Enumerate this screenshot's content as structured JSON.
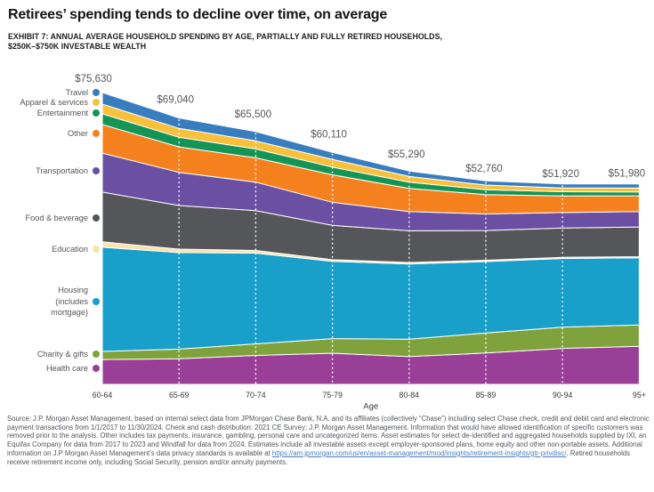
{
  "header": {
    "title": "Retirees’ spending tends to decline over time, on average",
    "subtitle_line1": "EXHIBIT 7: ANNUAL AVERAGE HOUSEHOLD SPENDING BY AGE, PARTIALLY AND FULLY RETIRED HOUSEHOLDS,",
    "subtitle_line2": "$250K–$750K INVESTABLE WEALTH"
  },
  "chart_data": {
    "type": "area",
    "stacked": true,
    "title": "Annual average household spending by age",
    "xlabel": "Age",
    "ylabel": "",
    "grid": "white dashed vertical lines at interior age ticks",
    "legend_position": "left",
    "categories": [
      "60-64",
      "65-69",
      "70-74",
      "75-79",
      "80-84",
      "85-89",
      "90-94",
      "95+"
    ],
    "totals": [
      75630,
      69040,
      65500,
      60110,
      55290,
      52760,
      51920,
      51980
    ],
    "total_labels": [
      "$75,630",
      "$69,040",
      "$65,500",
      "$60,110",
      "$55,290",
      "$52,760",
      "$51,920",
      "$51,980"
    ],
    "series_note": "series listed top-to-bottom as stacked; values are estimates read from the chart that sum to the labeled totals",
    "series": [
      {
        "name": "Travel",
        "color": "#377DC0",
        "values": [
          3000,
          2700,
          2400,
          1800,
          1400,
          1100,
          1000,
          1100
        ]
      },
      {
        "name": "Apparel & services",
        "color": "#F9C03C",
        "values": [
          2500,
          2300,
          2100,
          2000,
          1500,
          1200,
          1000,
          1000
        ]
      },
      {
        "name": "Entertainment",
        "color": "#149455",
        "values": [
          2800,
          2500,
          2300,
          2000,
          1600,
          1300,
          1100,
          1000
        ]
      },
      {
        "name": "Other",
        "color": "#F5801E",
        "values": [
          7400,
          6600,
          6300,
          7100,
          6000,
          5000,
          4300,
          4100
        ]
      },
      {
        "name": "Transportation",
        "color": "#6A4FA3",
        "values": [
          10100,
          8600,
          7400,
          6000,
          5000,
          4300,
          4000,
          4000
        ]
      },
      {
        "name": "Food & beverage",
        "color": "#54565A",
        "values": [
          12900,
          11300,
          10300,
          8900,
          8200,
          7700,
          7600,
          7700
        ]
      },
      {
        "name": "Education",
        "color": "#FAE3AC",
        "values": [
          1400,
          900,
          700,
          450,
          400,
          350,
          300,
          300
        ]
      },
      {
        "name": "Housing (includes mortgage)",
        "color": "#189FCA",
        "legend_lines": [
          "Housing",
          "(includes",
          "mortgage)"
        ],
        "values": [
          27000,
          25000,
          23500,
          20000,
          19500,
          18500,
          17800,
          17400
        ]
      },
      {
        "name": "Charity & gifts",
        "color": "#7FA23C",
        "values": [
          2100,
          2500,
          3000,
          3800,
          4500,
          5200,
          5500,
          5500
        ]
      },
      {
        "name": "Health care",
        "color": "#9A3F97",
        "values": [
          6430,
          6640,
          7500,
          8060,
          7190,
          8110,
          9320,
          9880
        ]
      }
    ]
  },
  "footer": {
    "source_prefix": "Source: J.P. Morgan Asset Management, based on internal select data from JPMorgan Chase Bank, N.A. and its affiliates (collectively “Chase”) including select Chase check, credit and debit card and electronic payment transactions from 1/1/2017 to 11/30/2024. Check and cash distribution: 2021 CE Survey; J.P. Morgan Asset Management. Information that would have allowed identification of specific customers was removed prior to the analysis. Other includes tax payments, insurance, gambling, personal care and uncategorized items. Asset estimates for select de-identified and aggregated households supplied by IXI, an Equifax Company for data from 2017 to 2023 and Windfall for data from 2024. Estimates include all investable assets except employer-sponsored plans, home equity and other non-portable assets. Additional information on J.P Morgan Asset Management’s data privacy standards is available at ",
    "link_text": "https://am.jpmorgan.com/us/en/asset-management/mod/insights/retirement-insights/gtr-privdisc/",
    "source_suffix": ". Retired households receive retirement income only, including Social Security, pension and/or annuity payments."
  }
}
